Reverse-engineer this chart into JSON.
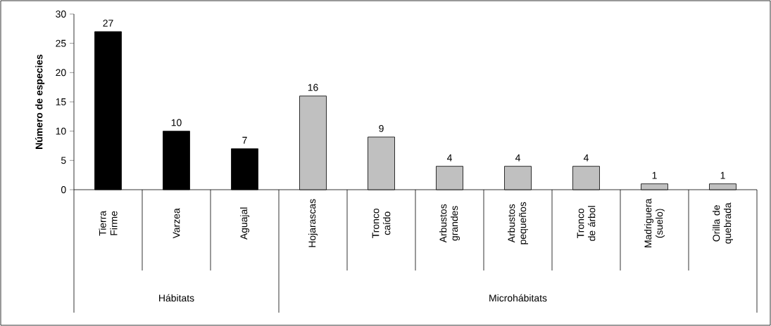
{
  "chart_data": {
    "type": "bar",
    "ylabel": "Número de especies",
    "categories": [
      "Tierra Firme",
      "Varzea",
      "Aguajal",
      "Hojarascas",
      "Tronco caído",
      "Arbustos grandes",
      "Arbustos pequeños",
      "Tronco de árbol",
      "Madriguera (suelo)",
      "Orilla de quebrada"
    ],
    "values": [
      27,
      10,
      7,
      16,
      9,
      4,
      4,
      4,
      1,
      1
    ],
    "colors": [
      "#000000",
      "#000000",
      "#000000",
      "#c0c0c0",
      "#c0c0c0",
      "#c0c0c0",
      "#c0c0c0",
      "#c0c0c0",
      "#c0c0c0",
      "#c0c0c0"
    ],
    "ylim": [
      0,
      30
    ],
    "yticks": [
      0,
      5,
      10,
      15,
      20,
      25,
      30
    ],
    "data_labels": true,
    "grid": false,
    "annotations": [
      "Hábitats",
      "Microhábitats"
    ]
  }
}
